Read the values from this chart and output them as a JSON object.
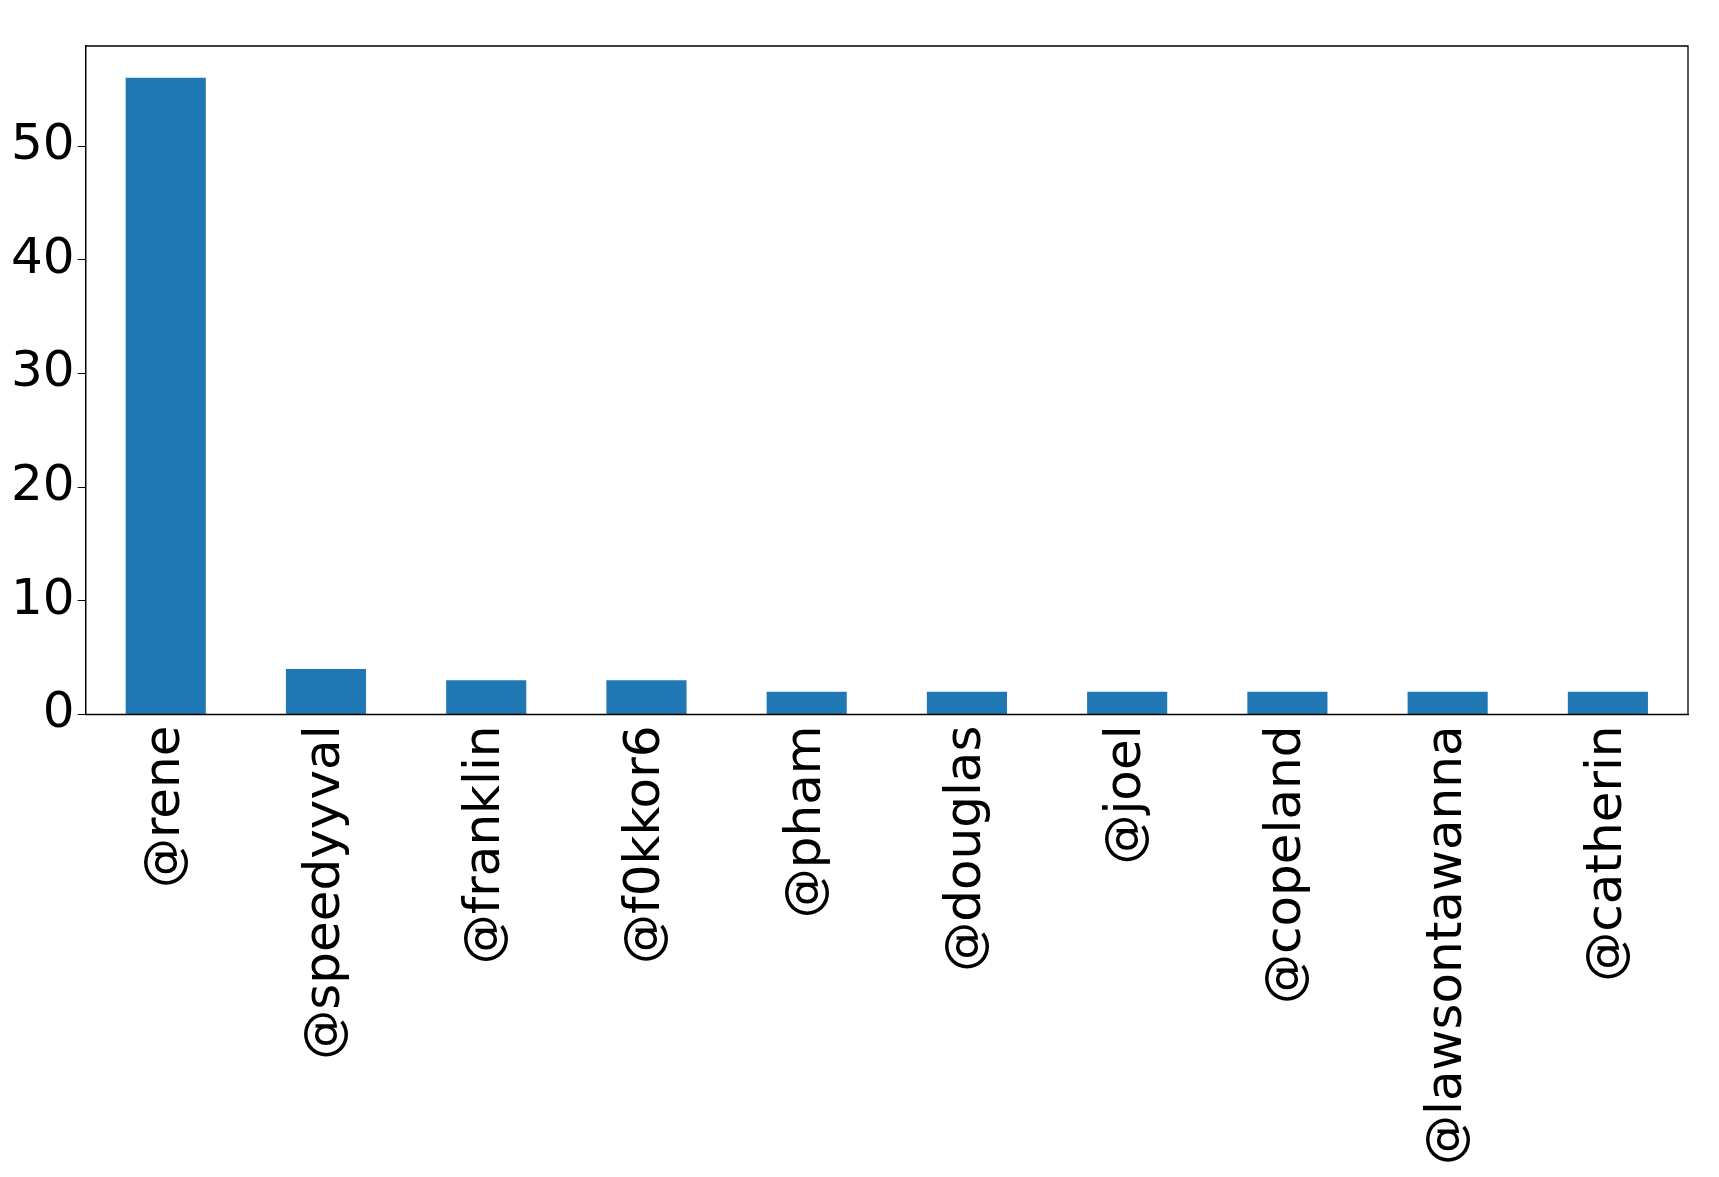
{
  "chart_data": {
    "type": "bar",
    "categories": [
      "@rene",
      "@speedyyval",
      "@franklin",
      "@f0kkor6",
      "@pham",
      "@douglas",
      "@joel",
      "@copeland",
      "@lawsontawanna",
      "@catherin"
    ],
    "values": [
      56,
      4,
      3,
      3,
      2,
      2,
      2,
      2,
      2,
      2
    ],
    "color": "#1f77b4",
    "ylim": [
      0,
      58.8
    ],
    "yticks": [
      0,
      10,
      20,
      30,
      40,
      50
    ],
    "grid": false,
    "legend": false
  }
}
